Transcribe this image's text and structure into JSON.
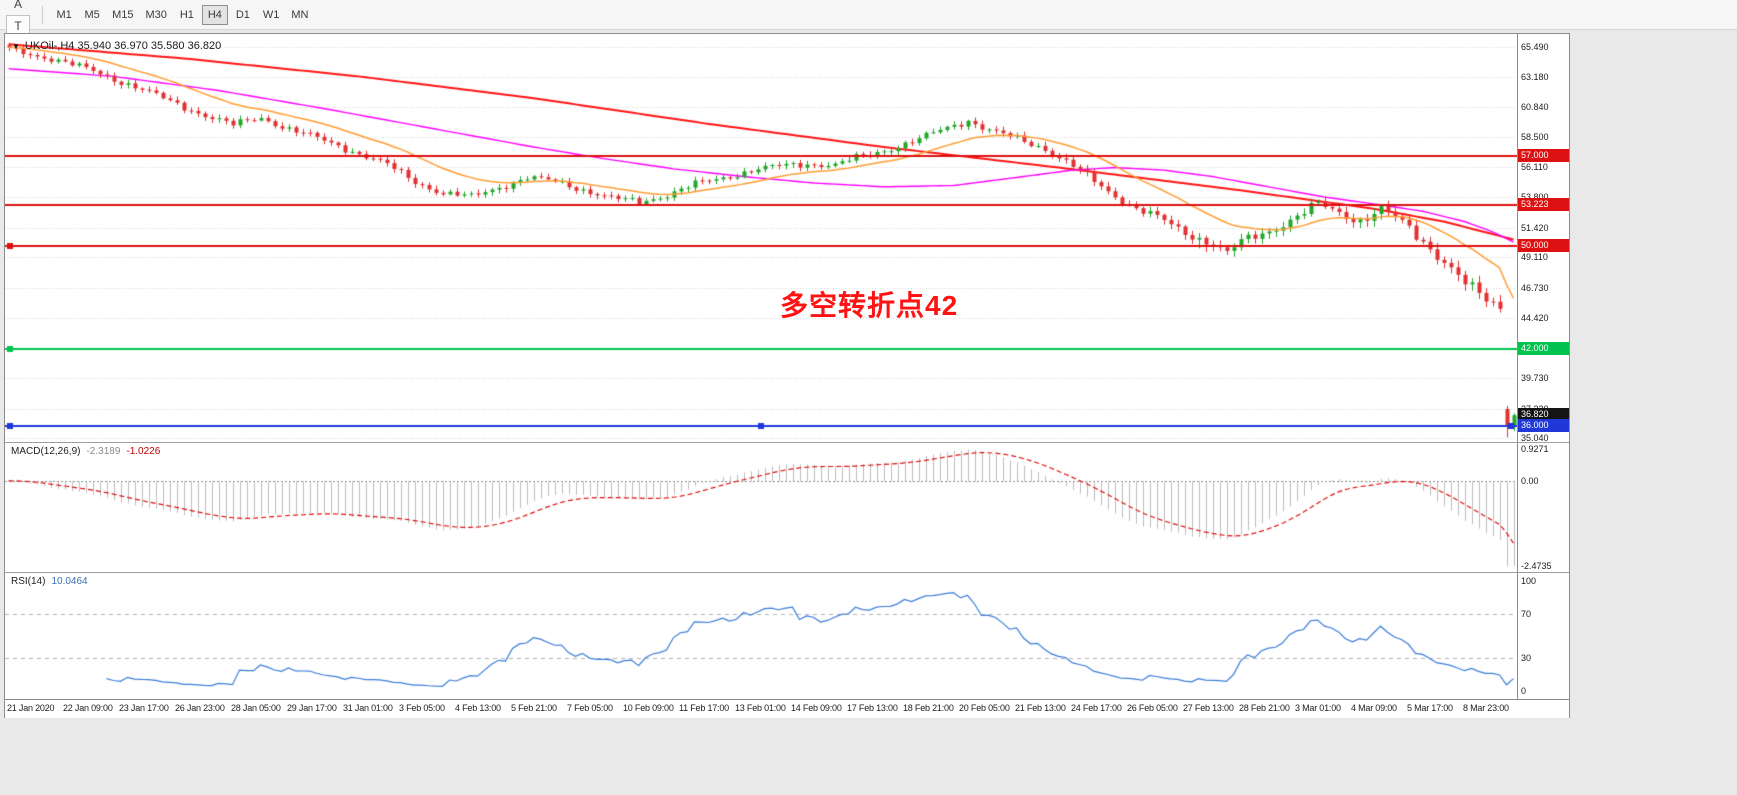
{
  "icons": {
    "ohlc_caret": "▼",
    "draw_caret": "▾"
  },
  "toolbar": {
    "left_buttons": [
      {
        "name": "charts-grid-button",
        "glyph": "▦"
      },
      {
        "name": "font-label-button",
        "glyph": "A"
      },
      {
        "name": "text-tool-button",
        "glyph": "T",
        "boxed": true
      },
      {
        "name": "draw-tool-button",
        "glyph": "✎",
        "caret": true
      }
    ],
    "timeframes": [
      "M1",
      "M5",
      "M15",
      "M30",
      "H1",
      "H4",
      "D1",
      "W1",
      "MN"
    ],
    "active_timeframe": "H4"
  },
  "chart": {
    "title": "UKOil-,H4  35.940 36.970 35.580 36.820",
    "annotation": {
      "text": "多空转折点42",
      "color": "#ff1212"
    },
    "price_axis_labels": [
      "65.490",
      "63.180",
      "60.840",
      "58.500",
      "56.110",
      "53.800",
      "51.420",
      "49.110",
      "46.730",
      "44.420",
      "42.040",
      "39.730",
      "37.320",
      "35.040"
    ],
    "badges": [
      {
        "text": "57.000",
        "price": 57.0,
        "bg": "#dd1111"
      },
      {
        "text": "53.223",
        "price": 53.223,
        "bg": "#dd1111"
      },
      {
        "text": "50.000",
        "price": 50.0,
        "bg": "#dd1111"
      },
      {
        "text": "42.000",
        "price": 42.0,
        "bg": "#00c24e"
      },
      {
        "text": "36.820",
        "price": 36.82,
        "bg": "#141414"
      },
      {
        "text": "36.000",
        "price": 36.0,
        "bg": "#2038d8"
      }
    ]
  },
  "macd": {
    "label": "MACD(12,26,9)",
    "value_main": "-2.3189",
    "value_signal": "-1.0226",
    "axis_labels": [
      {
        "text": "0.9271",
        "value": 0.9271
      },
      {
        "text": "0.00",
        "value": 0
      },
      {
        "text": "-2.4735",
        "value": -2.4735
      }
    ]
  },
  "rsi": {
    "label": "RSI(14)",
    "value": "10.0464",
    "axis_labels": [
      {
        "text": "100",
        "value": 100
      },
      {
        "text": "70",
        "value": 70
      },
      {
        "text": "30",
        "value": 30
      },
      {
        "text": "0",
        "value": 0
      }
    ]
  },
  "time_axis": [
    "21 Jan 2020",
    "22 Jan 09:00",
    "23 Jan 17:00",
    "26 Jan 23:00",
    "28 Jan 05:00",
    "29 Jan 17:00",
    "31 Jan 01:00",
    "3 Feb 05:00",
    "4 Feb 13:00",
    "5 Feb 21:00",
    "7 Feb 05:00",
    "10 Feb 09:00",
    "11 Feb 17:00",
    "13 Feb 01:00",
    "14 Feb 09:00",
    "17 Feb 13:00",
    "18 Feb 21:00",
    "20 Feb 05:00",
    "21 Feb 13:00",
    "24 Feb 17:00",
    "26 Feb 05:00",
    "27 Feb 13:00",
    "28 Feb 21:00",
    "3 Mar 01:00",
    "4 Mar 09:00",
    "5 Mar 17:00",
    "8 Mar 23:00"
  ],
  "chart_data": {
    "type": "candlestick",
    "symbol": "UKOil-",
    "timeframe": "H4",
    "current_ohlc": {
      "open": 35.94,
      "high": 36.97,
      "low": 35.58,
      "close": 36.82
    },
    "candle_count": 216,
    "labels_every_n_candles": 8,
    "y_domain": [
      34.73,
      66.5
    ],
    "up_color": "#23a62b",
    "down_color": "#e03232",
    "grid_color": "#d2d2d2",
    "close_anchors": [
      [
        0,
        65.3
      ],
      [
        6,
        64.6
      ],
      [
        12,
        63.6
      ],
      [
        18,
        62.4
      ],
      [
        24,
        61.0
      ],
      [
        28,
        60.2
      ],
      [
        32,
        59.4
      ],
      [
        36,
        60.0
      ],
      [
        40,
        59.1
      ],
      [
        46,
        58.0
      ],
      [
        50,
        57.2
      ],
      [
        54,
        56.3
      ],
      [
        58,
        55.0
      ],
      [
        62,
        54.1
      ],
      [
        66,
        53.8
      ],
      [
        70,
        54.6
      ],
      [
        74,
        55.3
      ],
      [
        78,
        55.0
      ],
      [
        82,
        54.4
      ],
      [
        86,
        53.7
      ],
      [
        90,
        53.4
      ],
      [
        94,
        54.0
      ],
      [
        98,
        54.8
      ],
      [
        102,
        55.3
      ],
      [
        106,
        55.9
      ],
      [
        110,
        56.2
      ],
      [
        114,
        56.4
      ],
      [
        118,
        56.3
      ],
      [
        122,
        57.0
      ],
      [
        126,
        57.6
      ],
      [
        130,
        58.3
      ],
      [
        134,
        59.2
      ],
      [
        137,
        59.8
      ],
      [
        140,
        59.0
      ],
      [
        144,
        58.3
      ],
      [
        148,
        57.6
      ],
      [
        152,
        56.2
      ],
      [
        156,
        54.6
      ],
      [
        160,
        53.2
      ],
      [
        164,
        52.2
      ],
      [
        168,
        51.0
      ],
      [
        172,
        50.2
      ],
      [
        174,
        49.4
      ],
      [
        176,
        50.3
      ],
      [
        180,
        51.2
      ],
      [
        184,
        52.3
      ],
      [
        187,
        53.2
      ],
      [
        190,
        52.6
      ],
      [
        193,
        52.0
      ],
      [
        196,
        52.8
      ],
      [
        199,
        51.8
      ],
      [
        202,
        50.4
      ],
      [
        205,
        48.8
      ],
      [
        208,
        47.0
      ],
      [
        211,
        45.8
      ],
      [
        213,
        45.3
      ]
    ],
    "last_candles": [
      {
        "o": 37.3,
        "h": 37.55,
        "l": 35.1,
        "c": 35.94
      },
      {
        "o": 35.94,
        "h": 36.97,
        "l": 35.58,
        "c": 36.82
      }
    ],
    "ma_fast_period": 18,
    "ma_fast_color": "#ff9c33",
    "ma_mid_color": "#ff00ff",
    "ma_slow_color": "#ff1414",
    "ma_mid_anchors": [
      [
        0,
        63.8
      ],
      [
        15,
        63.2
      ],
      [
        30,
        62.1
      ],
      [
        45,
        60.7
      ],
      [
        60,
        59.2
      ],
      [
        75,
        57.7
      ],
      [
        85,
        56.8
      ],
      [
        95,
        56.0
      ],
      [
        105,
        55.4
      ],
      [
        115,
        54.9
      ],
      [
        125,
        54.6
      ],
      [
        135,
        54.7
      ],
      [
        145,
        55.4
      ],
      [
        152,
        55.9
      ],
      [
        158,
        56.1
      ],
      [
        165,
        55.9
      ],
      [
        172,
        55.4
      ],
      [
        180,
        54.6
      ],
      [
        188,
        53.8
      ],
      [
        196,
        53.2
      ],
      [
        202,
        52.7
      ],
      [
        208,
        51.9
      ],
      [
        212,
        51.1
      ],
      [
        215,
        50.3
      ]
    ],
    "ma_slow_anchors": [
      [
        0,
        65.7
      ],
      [
        25,
        64.6
      ],
      [
        50,
        63.2
      ],
      [
        75,
        61.5
      ],
      [
        100,
        59.5
      ],
      [
        125,
        57.7
      ],
      [
        150,
        56.1
      ],
      [
        175,
        54.4
      ],
      [
        195,
        52.9
      ],
      [
        205,
        51.9
      ],
      [
        215,
        50.5
      ]
    ],
    "hlines": [
      {
        "price": 57.0,
        "color": "#dd1111",
        "width": 2,
        "handles": "none"
      },
      {
        "price": 53.223,
        "color": "#dd1111",
        "width": 2,
        "handles": "none"
      },
      {
        "price": 50.0,
        "color": "#dd1111",
        "width": 2,
        "handles": "left"
      },
      {
        "price": 42.0,
        "color": "#00c24e",
        "width": 2,
        "handles": "left"
      },
      {
        "price": 36.0,
        "color": "#2038d8",
        "width": 2,
        "handles": "all"
      }
    ],
    "macd": {
      "fast": 12,
      "slow": 26,
      "signal": 9,
      "ymax": 0.9271,
      "ymin": -2.4735,
      "hist_color": "#bcbcbc",
      "signal_color": "#e01010"
    },
    "rsi": {
      "period": 14,
      "ymax": 100,
      "ymin": 0,
      "levels": [
        30,
        70
      ],
      "level_color": "#b4b4b4",
      "color": "#3b7dd8"
    }
  }
}
